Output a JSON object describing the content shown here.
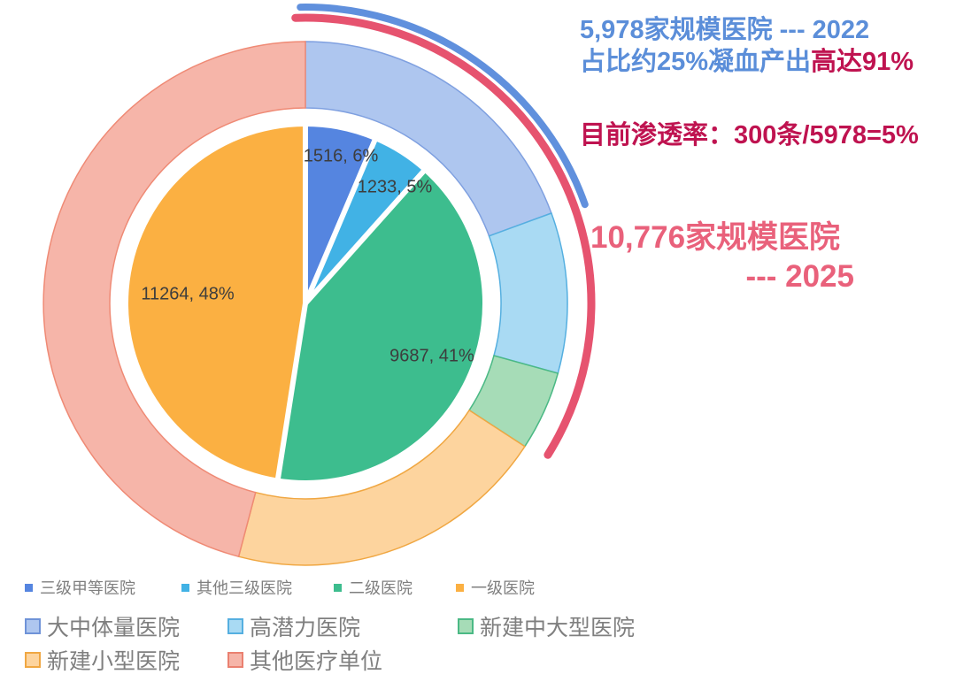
{
  "annotations": {
    "block2022": {
      "line1": "5,978家规模医院 --- 2022",
      "line2_blue": "占比约25%凝血产出",
      "line2_red": "高达91%",
      "blue_color": "#5b8ed9",
      "red_color": "#bf1350"
    },
    "penetration": "目前渗透率：300条/5978=5%",
    "block2025": {
      "line1": "10,776家规模医院",
      "line2": "--- 2025",
      "color": "#e9617b"
    }
  },
  "chart_data": {
    "type": "pie",
    "subtype": "nested-donut",
    "direction": "clockwise",
    "start_angle_deg": 0,
    "grid": false,
    "legend_position": "bottom",
    "inner_series": {
      "categories": [
        "三级甲等医院",
        "其他三级医院",
        "二级医院",
        "一级医院"
      ],
      "values": [
        1516,
        1233,
        9687,
        11264
      ],
      "percents": [
        6,
        5,
        41,
        48
      ],
      "labels": [
        "1516, 6%",
        "1233, 5%",
        "9687, 41%",
        "11264, 48%"
      ],
      "colors": [
        "#5585e0",
        "#41b2e5",
        "#3dbd8e",
        "#fbb042"
      ],
      "separator_color": "#ffffff"
    },
    "outer_series": {
      "categories": [
        "大中体量医院",
        "高潜力医院",
        "新建中大型医院",
        "新建小型医院",
        "其他医疗单位"
      ],
      "percents": [
        19.4,
        9.9,
        4.9,
        19.9,
        45.9
      ],
      "fills": [
        "#aec6ef",
        "#a9daf3",
        "#a6dcb7",
        "#fdd49e",
        "#f6b5a9"
      ],
      "strokes": [
        "#7fa0e0",
        "#55afe0",
        "#4bb985",
        "#f0a742",
        "#ef8a75"
      ]
    },
    "arcs": [
      {
        "name": "arc-2022",
        "color": "#6090dd",
        "start_deg": -1,
        "end_deg": 70.5,
        "radius": 335,
        "stroke_width": 8
      },
      {
        "name": "arc-2025",
        "color": "#e6536f",
        "start_deg": -2,
        "end_deg": 122,
        "radius": 323,
        "stroke_width": 9
      }
    ]
  },
  "legend": {
    "row1": [
      {
        "label": "三级甲等医院",
        "color": "#5585e0"
      },
      {
        "label": "其他三级医院",
        "color": "#41b2e5"
      },
      {
        "label": "二级医院",
        "color": "#3dbd8e"
      },
      {
        "label": "一级医院",
        "color": "#fbb042"
      }
    ],
    "row2": [
      {
        "label": "大中体量医院",
        "color": "#aec6ef",
        "border": "#6f93d8"
      },
      {
        "label": "高潜力医院",
        "color": "#a9daf3",
        "border": "#55afe0"
      },
      {
        "label": "新建中大型医院",
        "color": "#a6dcb7",
        "border": "#4bb985"
      }
    ],
    "row3": [
      {
        "label": "新建小型医院",
        "color": "#fdd49e",
        "border": "#f0a742"
      },
      {
        "label": "其他医疗单位",
        "color": "#f6b5a9",
        "border": "#ea8070"
      }
    ]
  }
}
